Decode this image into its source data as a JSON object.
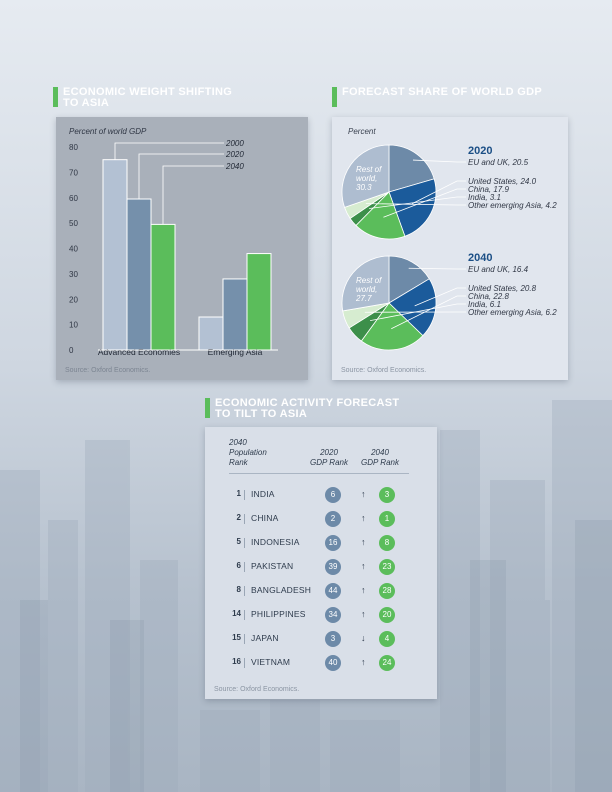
{
  "headings": {
    "weight": [
      "ECONOMIC WEIGHT SHIFTING",
      "TO ASIA"
    ],
    "forecast": [
      "FORECAST SHARE OF WORLD GDP"
    ],
    "activity": [
      "ECONOMIC ACTIVITY FORECAST",
      "TO TILT TO ASIA"
    ]
  },
  "source": "Source: Oxford Economics.",
  "colors": {
    "accent": "#5bbd5b",
    "y2000": "#b3c1d3",
    "y2020": "#7590ab",
    "y2040": "#5bbd5b"
  },
  "chart_data": [
    {
      "type": "bar",
      "ylabel": "Percent of world GDP",
      "ylim": [
        0,
        80
      ],
      "yticks": [
        0,
        10,
        20,
        30,
        40,
        50,
        60,
        70,
        80
      ],
      "categories": [
        "Advanced Economies",
        "Emerging Asia"
      ],
      "series": [
        {
          "name": "2000",
          "values": [
            75,
            13
          ]
        },
        {
          "name": "2020",
          "values": [
            59.5,
            28
          ]
        },
        {
          "name": "2040",
          "values": [
            49.5,
            38
          ]
        }
      ]
    },
    {
      "type": "pie",
      "unit": "Percent",
      "title": "2020",
      "slices": [
        {
          "label": "EU and UK",
          "value": 20.5,
          "text": "EU and UK, 20.5",
          "color": "#6d8aa8"
        },
        {
          "label": "United States",
          "value": 24.0,
          "text": "United States, 24.0",
          "color": "#1b5b9b"
        },
        {
          "label": "China",
          "value": 17.9,
          "text": "China, 17.9",
          "color": "#5bbd5b"
        },
        {
          "label": "India",
          "value": 3.1,
          "text": "India, 3.1",
          "color": "#3c8f4a"
        },
        {
          "label": "Other emerging Asia",
          "value": 4.2,
          "text": "Other emerging Asia, 4.2",
          "color": "#d6ecd0"
        },
        {
          "label": "Rest of world",
          "value": 30.3,
          "text": [
            "Rest of",
            "world,",
            "30.3"
          ],
          "color": "#aebdd0"
        }
      ]
    },
    {
      "type": "pie",
      "title": "2040",
      "slices": [
        {
          "label": "EU and UK",
          "value": 16.4,
          "text": "EU and UK, 16.4",
          "color": "#6d8aa8"
        },
        {
          "label": "United States",
          "value": 20.8,
          "text": "United States, 20.8",
          "color": "#1b5b9b"
        },
        {
          "label": "China",
          "value": 22.8,
          "text": "China, 22.8",
          "color": "#5bbd5b"
        },
        {
          "label": "India",
          "value": 6.1,
          "text": "India, 6.1",
          "color": "#3c8f4a"
        },
        {
          "label": "Other emerging Asia",
          "value": 6.2,
          "text": "Other emerging Asia, 6.2",
          "color": "#d6ecd0"
        },
        {
          "label": "Rest of world",
          "value": 27.7,
          "text": [
            "Rest of",
            "world,",
            "27.7"
          ],
          "color": "#aebdd0"
        }
      ]
    },
    {
      "type": "table",
      "columns": [
        [
          "2040",
          "Population",
          "Rank"
        ],
        [
          "2020",
          "GDP Rank"
        ],
        [
          "2040",
          "GDP Rank"
        ]
      ],
      "rows": [
        {
          "pop_rank": "1",
          "country": "INDIA",
          "gdp2020": "6",
          "dir": "up",
          "gdp2040": "3"
        },
        {
          "pop_rank": "2",
          "country": "CHINA",
          "gdp2020": "2",
          "dir": "up",
          "gdp2040": "1"
        },
        {
          "pop_rank": "5",
          "country": "INDONESIA",
          "gdp2020": "16",
          "dir": "up",
          "gdp2040": "8"
        },
        {
          "pop_rank": "6",
          "country": "PAKISTAN",
          "gdp2020": "39",
          "dir": "up",
          "gdp2040": "23"
        },
        {
          "pop_rank": "8",
          "country": "BANGLADESH",
          "gdp2020": "44",
          "dir": "up",
          "gdp2040": "28"
        },
        {
          "pop_rank": "14",
          "country": "PHILIPPINES",
          "gdp2020": "34",
          "dir": "up",
          "gdp2040": "20"
        },
        {
          "pop_rank": "15",
          "country": "JAPAN",
          "gdp2020": "3",
          "dir": "down",
          "gdp2040": "4"
        },
        {
          "pop_rank": "16",
          "country": "VIETNAM",
          "gdp2020": "40",
          "dir": "up",
          "gdp2040": "24"
        }
      ]
    }
  ]
}
